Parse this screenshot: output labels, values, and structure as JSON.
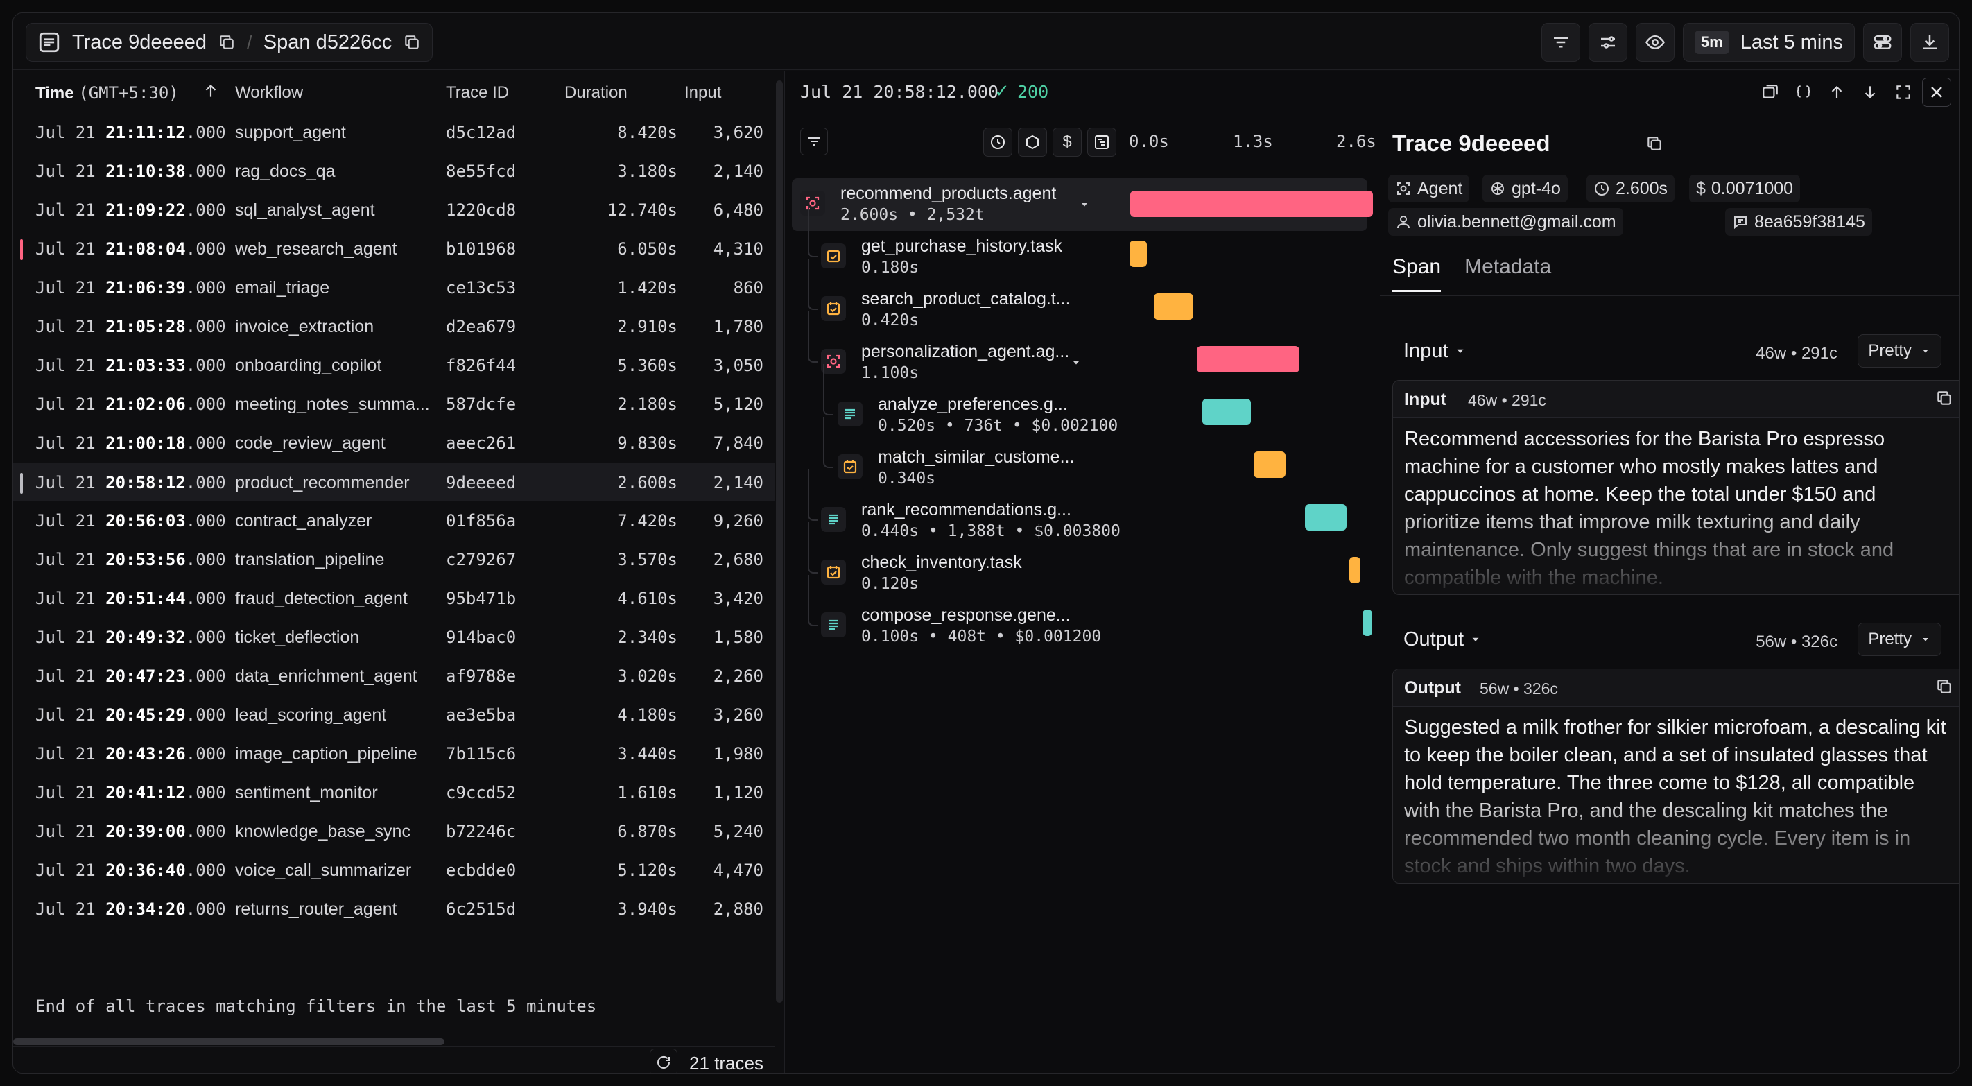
{
  "header": {
    "trace_label": "Trace 9deeeed",
    "span_label": "Span d5226cc",
    "separator": "/",
    "time_tag": "5m",
    "time_label": "Last 5 mins"
  },
  "table": {
    "columns": {
      "time": "Time",
      "tz": "(GMT+5:30)",
      "workflow": "Workflow",
      "trace_id": "Trace ID",
      "duration": "Duration",
      "input": "Input"
    },
    "rows": [
      {
        "date": "Jul 21",
        "hm": "21:11:12",
        "ms": ".000",
        "workflow": "support_agent",
        "trace_id": "d5c12ad",
        "duration": "8.420s",
        "input": "3,620"
      },
      {
        "date": "Jul 21",
        "hm": "21:10:38",
        "ms": ".000",
        "workflow": "rag_docs_qa",
        "trace_id": "8e55fcd",
        "duration": "3.180s",
        "input": "2,140"
      },
      {
        "date": "Jul 21",
        "hm": "21:09:22",
        "ms": ".000",
        "workflow": "sql_analyst_agent",
        "trace_id": "1220cd8",
        "duration": "12.740s",
        "input": "6,480"
      },
      {
        "date": "Jul 21",
        "hm": "21:08:04",
        "ms": ".000",
        "workflow": "web_research_agent",
        "trace_id": "b101968",
        "duration": "6.050s",
        "input": "4,310"
      },
      {
        "date": "Jul 21",
        "hm": "21:06:39",
        "ms": ".000",
        "workflow": "email_triage",
        "trace_id": "ce13c53",
        "duration": "1.420s",
        "input": "860"
      },
      {
        "date": "Jul 21",
        "hm": "21:05:28",
        "ms": ".000",
        "workflow": "invoice_extraction",
        "trace_id": "d2ea679",
        "duration": "2.910s",
        "input": "1,780"
      },
      {
        "date": "Jul 21",
        "hm": "21:03:33",
        "ms": ".000",
        "workflow": "onboarding_copilot",
        "trace_id": "f826f44",
        "duration": "5.360s",
        "input": "3,050"
      },
      {
        "date": "Jul 21",
        "hm": "21:02:06",
        "ms": ".000",
        "workflow": "meeting_notes_summa...",
        "trace_id": "587dcfe",
        "duration": "2.180s",
        "input": "5,120"
      },
      {
        "date": "Jul 21",
        "hm": "21:00:18",
        "ms": ".000",
        "workflow": "code_review_agent",
        "trace_id": "aeec261",
        "duration": "9.830s",
        "input": "7,840"
      },
      {
        "date": "Jul 21",
        "hm": "20:58:12",
        "ms": ".000",
        "workflow": "product_recommender",
        "trace_id": "9deeeed",
        "duration": "2.600s",
        "input": "2,140"
      },
      {
        "date": "Jul 21",
        "hm": "20:56:03",
        "ms": ".000",
        "workflow": "contract_analyzer",
        "trace_id": "01f856a",
        "duration": "7.420s",
        "input": "9,260"
      },
      {
        "date": "Jul 21",
        "hm": "20:53:56",
        "ms": ".000",
        "workflow": "translation_pipeline",
        "trace_id": "c279267",
        "duration": "3.570s",
        "input": "2,680"
      },
      {
        "date": "Jul 21",
        "hm": "20:51:44",
        "ms": ".000",
        "workflow": "fraud_detection_agent",
        "trace_id": "95b471b",
        "duration": "4.610s",
        "input": "3,420"
      },
      {
        "date": "Jul 21",
        "hm": "20:49:32",
        "ms": ".000",
        "workflow": "ticket_deflection",
        "trace_id": "914bac0",
        "duration": "2.340s",
        "input": "1,580"
      },
      {
        "date": "Jul 21",
        "hm": "20:47:23",
        "ms": ".000",
        "workflow": "data_enrichment_agent",
        "trace_id": "af9788e",
        "duration": "3.020s",
        "input": "2,260"
      },
      {
        "date": "Jul 21",
        "hm": "20:45:29",
        "ms": ".000",
        "workflow": "lead_scoring_agent",
        "trace_id": "ae3e5ba",
        "duration": "4.180s",
        "input": "3,260"
      },
      {
        "date": "Jul 21",
        "hm": "20:43:26",
        "ms": ".000",
        "workflow": "image_caption_pipeline",
        "trace_id": "7b115c6",
        "duration": "3.440s",
        "input": "1,980"
      },
      {
        "date": "Jul 21",
        "hm": "20:41:12",
        "ms": ".000",
        "workflow": "sentiment_monitor",
        "trace_id": "c9ccd52",
        "duration": "1.610s",
        "input": "1,120"
      },
      {
        "date": "Jul 21",
        "hm": "20:39:00",
        "ms": ".000",
        "workflow": "knowledge_base_sync",
        "trace_id": "b72246c",
        "duration": "6.870s",
        "input": "5,240"
      },
      {
        "date": "Jul 21",
        "hm": "20:36:40",
        "ms": ".000",
        "workflow": "voice_call_summarizer",
        "trace_id": "ecbdde0",
        "duration": "5.120s",
        "input": "4,470"
      },
      {
        "date": "Jul 21",
        "hm": "20:34:20",
        "ms": ".000",
        "workflow": "returns_router_agent",
        "trace_id": "6c2515d",
        "duration": "3.940s",
        "input": "2,880"
      }
    ],
    "end_note": "End of all traces matching filters in the last 5 minutes",
    "count_label": "21 traces"
  },
  "panel": {
    "timestamp": "Jul 21 20:58:12.000",
    "status_check": "✓",
    "status_code": "200",
    "scale": [
      "0.0s",
      "1.3s",
      "2.6s"
    ],
    "tools": [
      "clock-icon",
      "cube-icon",
      "dollar-icon",
      "gantt-icon"
    ],
    "dollar_glyph": "$",
    "total_seconds": 2.6,
    "spans": [
      {
        "name": "recommend_products.agent",
        "meta": "2.600s • 2,532t",
        "kind": "agent",
        "start": 0.0,
        "dur": 2.6
      },
      {
        "name": "get_purchase_history.task",
        "meta": "0.180s",
        "kind": "task",
        "start": 0.01,
        "dur": 0.18
      },
      {
        "name": "search_product_catalog.t...",
        "meta": "0.420s",
        "kind": "task",
        "start": 0.27,
        "dur": 0.42
      },
      {
        "name": "personalization_agent.ag...",
        "meta": "1.100s",
        "kind": "agent",
        "start": 0.73,
        "dur": 1.1
      },
      {
        "name": "analyze_preferences.g...",
        "meta": "0.520s • 736t • $0.002100",
        "kind": "gen",
        "start": 0.79,
        "dur": 0.52
      },
      {
        "name": "match_similar_custome...",
        "meta": "0.340s",
        "kind": "task",
        "start": 1.34,
        "dur": 0.34
      },
      {
        "name": "rank_recommendations.g...",
        "meta": "0.440s • 1,388t • $0.003800",
        "kind": "gen",
        "start": 1.89,
        "dur": 0.44
      },
      {
        "name": "check_inventory.task",
        "meta": "0.120s",
        "kind": "task",
        "start": 2.36,
        "dur": 0.12
      },
      {
        "name": "compose_response.gene...",
        "meta": "0.100s • 408t • $0.001200",
        "kind": "gen",
        "start": 2.5,
        "dur": 0.1
      }
    ],
    "colors": {
      "agent": "#ff6482",
      "task": "#ffb340",
      "gen": "#5fd3c8"
    }
  },
  "detail": {
    "title": "Trace 9deeeed",
    "chips": {
      "type": "Agent",
      "model": "gpt-4o",
      "duration": "2.600s",
      "cost": "0.0071000",
      "user": "olivia.bennett@gmail.com",
      "session": "8ea659f38145"
    },
    "tabs": [
      "Span",
      "Metadata"
    ],
    "input": {
      "label": "Input",
      "stats": "46w • 291c",
      "format": "Pretty",
      "card_label": "Input",
      "card_stats": "46w • 291c",
      "text": "Recommend accessories for the Barista Pro espresso machine for a customer who mostly makes lattes and cappuccinos at home. Keep the total under $150 and prioritize items that improve milk texturing and daily maintenance. Only suggest things that are in stock and compatible with the machine."
    },
    "output": {
      "label": "Output",
      "stats": "56w • 326c",
      "format": "Pretty",
      "card_label": "Output",
      "card_stats": "56w • 326c",
      "text": "Suggested a milk frother for silkier microfoam, a descaling kit to keep the boiler clean, and a set of insulated glasses that hold temperature. The three come to $128, all compatible with the Barista Pro, and the descaling kit matches the recommended two month cleaning cycle. Every item is in stock and ships within two days."
    }
  }
}
